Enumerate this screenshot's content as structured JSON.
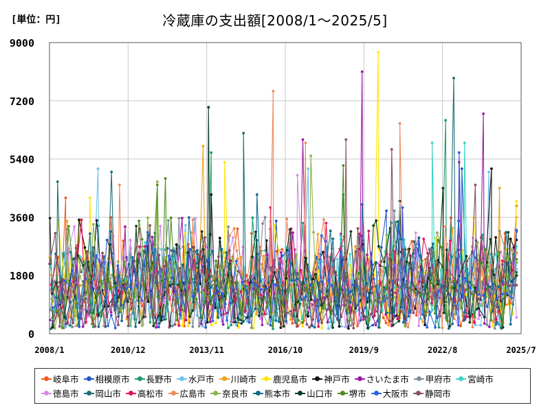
{
  "unit_label": "[単位：円]",
  "chart_data": {
    "type": "line",
    "title": "冷蔵庫の支出額[2008/1〜2025/5]",
    "xlabel": "",
    "ylabel": "",
    "ylim": [
      0,
      9000
    ],
    "yticks": [
      0,
      1800,
      3600,
      5400,
      7200,
      9000
    ],
    "ytick_labels": [
      "0",
      "1800",
      "3600",
      "5400",
      "7200",
      "9000"
    ],
    "xlim": [
      2008.0,
      2025.5
    ],
    "xticks": [
      2008.0,
      2010.917,
      2013.833,
      2016.75,
      2019.667,
      2022.583,
      2025.5
    ],
    "xtick_labels": [
      "2008/1",
      "2010/12",
      "2013/11",
      "2016/10",
      "2019/9",
      "2022/8",
      "2025/7"
    ],
    "grid": true,
    "legend_position": "bottom",
    "series": [
      {
        "name": "岐阜市",
        "color": "#f15a22",
        "peaks": [
          [
            2008.6,
            4200
          ],
          [
            2015.5,
            3100
          ],
          [
            2024.9,
            3100
          ]
        ],
        "end": [
          2025.33,
          3950
        ]
      },
      {
        "name": "相模原市",
        "color": "#2255c4",
        "peaks": [
          [
            2020.5,
            3800
          ],
          [
            2023.3,
            5100
          ]
        ],
        "end": [
          2025.33,
          2200
        ]
      },
      {
        "name": "長野市",
        "color": "#1a9e6a",
        "peaks": [
          [
            2014.0,
            5600
          ],
          [
            2022.7,
            6600
          ],
          [
            2018.9,
            4300
          ]
        ],
        "end": [
          2025.33,
          3150
        ]
      },
      {
        "name": "水戸市",
        "color": "#6ec3ea",
        "peaks": [
          [
            2009.8,
            5100
          ],
          [
            2017.6,
            5100
          ],
          [
            2024.3,
            5000
          ]
        ],
        "end": [
          2025.33,
          2000
        ]
      },
      {
        "name": "川崎市",
        "color": "#f3a11b",
        "peaks": [
          [
            2013.7,
            5800
          ],
          [
            2024.7,
            4500
          ]
        ],
        "end": [
          2025.33,
          3600
        ]
      },
      {
        "name": "鹿児島市",
        "color": "#ffe500",
        "peaks": [
          [
            2020.2,
            8700
          ],
          [
            2014.5,
            5300
          ],
          [
            2009.5,
            4200
          ]
        ],
        "end": [
          2025.33,
          4100
        ]
      },
      {
        "name": "神戸市",
        "color": "#111111",
        "peaks": [
          [
            2014.0,
            4300
          ],
          [
            2021.0,
            4100
          ],
          [
            2024.4,
            5100
          ]
        ],
        "end": [
          2025.33,
          2900
        ]
      },
      {
        "name": "さいたま市",
        "color": "#9b19a8",
        "peaks": [
          [
            2019.6,
            8100
          ],
          [
            2017.4,
            6000
          ],
          [
            2024.1,
            6800
          ]
        ],
        "end": [
          2025.33,
          2500
        ]
      },
      {
        "name": "甲府市",
        "color": "#7f8c9a",
        "peaks": [
          [
            2016.0,
            3600
          ],
          [
            2020.8,
            3800
          ]
        ],
        "end": [
          2025.33,
          1900
        ]
      },
      {
        "name": "宮崎市",
        "color": "#3cd4c4",
        "peaks": [
          [
            2022.2,
            5900
          ],
          [
            2023.4,
            5900
          ]
        ],
        "end": [
          2025.33,
          2700
        ]
      },
      {
        "name": "徳島市",
        "color": "#d98be8",
        "peaks": [
          [
            2017.2,
            4900
          ],
          [
            2011.0,
            2900
          ]
        ],
        "end": [
          2025.33,
          500
        ]
      },
      {
        "name": "岡山市",
        "color": "#1b6e75",
        "peaks": [
          [
            2008.3,
            4700
          ],
          [
            2010.3,
            5000
          ],
          [
            2015.2,
            6200
          ],
          [
            2023.0,
            7900
          ]
        ],
        "end": [
          2025.33,
          1900
        ]
      },
      {
        "name": "高松市",
        "color": "#e0125f",
        "peaks": [
          [
            2016.2,
            3900
          ],
          [
            2023.2,
            5300
          ]
        ],
        "end": [
          2025.33,
          3200
        ]
      },
      {
        "name": "広島市",
        "color": "#f08860",
        "peaks": [
          [
            2010.6,
            4600
          ],
          [
            2016.3,
            7500
          ],
          [
            2017.5,
            5900
          ],
          [
            2021.0,
            6500
          ]
        ],
        "end": [
          2025.33,
          2500
        ]
      },
      {
        "name": "奈良市",
        "color": "#8db34a",
        "peaks": [
          [
            2017.7,
            5500
          ],
          [
            2012.0,
            4700
          ]
        ],
        "end": [
          2025.33,
          2200
        ]
      },
      {
        "name": "熊本市",
        "color": "#136a8a",
        "peaks": [
          [
            2015.7,
            4300
          ],
          [
            2019.6,
            4000
          ]
        ],
        "end": [
          2025.33,
          1800
        ]
      },
      {
        "name": "山口市",
        "color": "#0c3d21",
        "peaks": [
          [
            2013.9,
            7000
          ],
          [
            2022.6,
            4500
          ]
        ],
        "end": [
          2025.33,
          1800
        ]
      },
      {
        "name": "堺市",
        "color": "#4d8f1e",
        "peaks": [
          [
            2012.3,
            4800
          ],
          [
            2018.9,
            5200
          ],
          [
            2012.0,
            4600
          ]
        ],
        "end": [
          2025.33,
          2300
        ]
      },
      {
        "name": "大阪市",
        "color": "#2b5fe6",
        "peaks": [
          [
            2023.2,
            5600
          ],
          [
            2021.1,
            3900
          ]
        ],
        "end": [
          2025.33,
          3200
        ]
      },
      {
        "name": "静岡市",
        "color": "#8a4e66",
        "peaks": [
          [
            2019.0,
            6000
          ],
          [
            2020.7,
            5700
          ],
          [
            2023.8,
            4600
          ]
        ],
        "end": [
          2025.33,
          1500
        ]
      }
    ]
  }
}
